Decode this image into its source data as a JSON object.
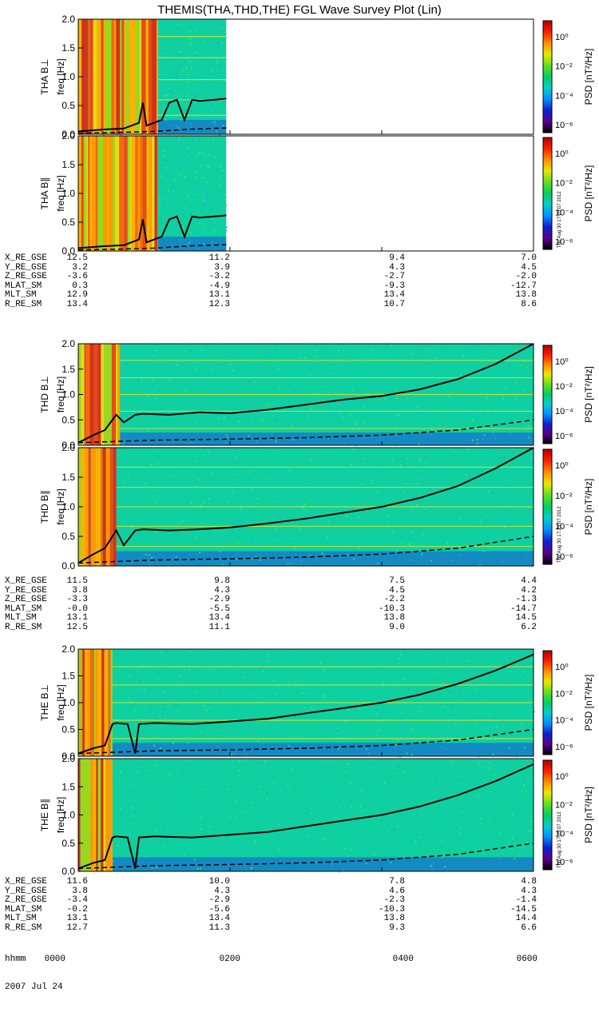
{
  "title": "THEMIS(THA,THD,THE) FGL Wave Survey Plot (Lin)",
  "colors": {
    "low_power_bg": "#0fd0a0",
    "noise_blue": "#1a50e0",
    "high_power": "#e84a18",
    "harmonic_line": "#c8e83a",
    "trace": "#000000"
  },
  "colorbar": {
    "label": "PSD [nT²/Hz]",
    "ticks": [
      "10⁰",
      "10⁻²",
      "10⁻⁴",
      "10⁻⁶"
    ],
    "colors": [
      "#000000",
      "#5a0090",
      "#1020d0",
      "#0090ff",
      "#00d0d0",
      "#00d060",
      "#60e020",
      "#e8e800",
      "#ff9000",
      "#ff2000",
      "#b00000"
    ],
    "stamp": "Thu Aug 30 17:25:07 2012"
  },
  "time_axis": {
    "xlim_hours": [
      0,
      6
    ],
    "ticks_hours": [
      0,
      2,
      4,
      6
    ],
    "hhmm": [
      "0000",
      "0200",
      "0400",
      "0600"
    ],
    "hhmm_label": "hhmm",
    "date": "2007 Jul 24"
  },
  "chart_data": [
    {
      "type": "heatmap",
      "probe": "THA",
      "panel_label": "THA B⊥",
      "ylabel": "freq [Hz]",
      "ylim": [
        0.0,
        2.0
      ],
      "yticks": [
        "0.0",
        "0.5",
        "1.0",
        "1.5",
        "2.0"
      ],
      "data_end_hours": 1.95,
      "high_power_until_hours": 1.05,
      "harmonics_hz": [
        0.33,
        0.6,
        0.95,
        1.33,
        1.7
      ],
      "gyro_curve": {
        "x": [
          0,
          0.3,
          0.6,
          0.8,
          0.85,
          0.9,
          1.0,
          1.1,
          1.2,
          1.3,
          1.4,
          1.5,
          1.6,
          1.8,
          1.95
        ],
        "y": [
          0.05,
          0.08,
          0.1,
          0.2,
          0.55,
          0.15,
          0.2,
          0.25,
          0.55,
          0.6,
          0.25,
          0.6,
          0.58,
          0.6,
          0.62
        ]
      },
      "dashed_curve": {
        "x": [
          0,
          0.5,
          1.0,
          1.5,
          1.95
        ],
        "y": [
          0.02,
          0.03,
          0.05,
          0.09,
          0.11
        ]
      }
    },
    {
      "type": "heatmap",
      "probe": "THA",
      "panel_label": "THA B∥",
      "ylabel": "freq [Hz]",
      "ylim": [
        0.0,
        2.0
      ],
      "yticks": [
        "0.0",
        "0.5",
        "1.0",
        "1.5",
        "2.0"
      ],
      "data_end_hours": 1.95,
      "high_power_until_hours": 1.05,
      "harmonics_hz": [],
      "gyro_curve": {
        "x": [
          0,
          0.3,
          0.6,
          0.8,
          0.85,
          0.9,
          1.0,
          1.1,
          1.2,
          1.3,
          1.4,
          1.5,
          1.6,
          1.8,
          1.95
        ],
        "y": [
          0.05,
          0.08,
          0.1,
          0.2,
          0.55,
          0.15,
          0.2,
          0.25,
          0.55,
          0.6,
          0.25,
          0.6,
          0.58,
          0.6,
          0.62
        ]
      },
      "dashed_curve": {
        "x": [
          0,
          0.5,
          1.0,
          1.5,
          1.95
        ],
        "y": [
          0.02,
          0.03,
          0.05,
          0.09,
          0.11
        ]
      }
    },
    {
      "type": "heatmap",
      "probe": "THD",
      "panel_label": "THD B⊥",
      "ylabel": "freq [Hz]",
      "ylim": [
        0.0,
        2.0
      ],
      "yticks": [
        "0.0",
        "0.5",
        "1.0",
        "1.5",
        "2.0"
      ],
      "data_end_hours": 6.0,
      "high_power_until_hours": 0.55,
      "harmonics_hz": [
        0.33,
        0.67,
        1.0,
        1.33,
        1.67
      ],
      "gyro_curve": {
        "x": [
          0,
          0.2,
          0.35,
          0.5,
          0.6,
          0.75,
          0.85,
          1.2,
          1.6,
          2.0,
          2.5,
          3.0,
          3.5,
          4.0,
          4.5,
          5.0,
          5.5,
          6.0
        ],
        "y": [
          0.05,
          0.2,
          0.3,
          0.6,
          0.45,
          0.6,
          0.62,
          0.6,
          0.65,
          0.63,
          0.7,
          0.8,
          0.9,
          0.97,
          1.1,
          1.3,
          1.6,
          2.0
        ]
      },
      "dashed_curve": {
        "x": [
          0,
          1.0,
          2.0,
          3.0,
          4.0,
          5.0,
          6.0
        ],
        "y": [
          0.05,
          0.1,
          0.12,
          0.15,
          0.2,
          0.3,
          0.5
        ]
      }
    },
    {
      "type": "heatmap",
      "probe": "THD",
      "panel_label": "THD B∥",
      "ylabel": "freq [Hz]",
      "ylim": [
        0.0,
        2.0
      ],
      "yticks": [
        "0.0",
        "0.5",
        "1.0",
        "1.5",
        "2.0"
      ],
      "data_end_hours": 6.0,
      "high_power_until_hours": 0.5,
      "harmonics_hz": [
        0.33,
        0.67,
        1.0,
        1.33,
        1.67
      ],
      "gyro_curve": {
        "x": [
          0,
          0.2,
          0.35,
          0.5,
          0.6,
          0.75,
          0.85,
          1.2,
          1.6,
          2.0,
          2.5,
          3.0,
          3.5,
          4.0,
          4.5,
          5.0,
          5.5,
          6.0
        ],
        "y": [
          0.05,
          0.2,
          0.3,
          0.6,
          0.35,
          0.6,
          0.62,
          0.6,
          0.62,
          0.65,
          0.72,
          0.8,
          0.9,
          1.0,
          1.15,
          1.35,
          1.65,
          2.0
        ]
      },
      "dashed_curve": {
        "x": [
          0,
          1.0,
          2.0,
          3.0,
          4.0,
          5.0,
          6.0
        ],
        "y": [
          0.05,
          0.1,
          0.12,
          0.15,
          0.2,
          0.3,
          0.5
        ]
      }
    },
    {
      "type": "heatmap",
      "probe": "THE",
      "panel_label": "THE B⊥",
      "ylabel": "freq [Hz]",
      "ylim": [
        0.0,
        2.0
      ],
      "yticks": [
        "0.0",
        "0.5",
        "1.0",
        "1.5",
        "2.0"
      ],
      "data_end_hours": 6.0,
      "high_power_until_hours": 0.45,
      "harmonics_hz": [
        0.33,
        0.67,
        1.0,
        1.33,
        1.67
      ],
      "gyro_curve": {
        "x": [
          0,
          0.2,
          0.35,
          0.45,
          0.5,
          0.65,
          0.75,
          0.8,
          1.0,
          1.5,
          2.0,
          2.5,
          3.0,
          3.5,
          4.0,
          4.5,
          5.0,
          5.5,
          6.0
        ],
        "y": [
          0.05,
          0.15,
          0.2,
          0.6,
          0.62,
          0.6,
          0.05,
          0.6,
          0.62,
          0.6,
          0.65,
          0.7,
          0.8,
          0.9,
          1.0,
          1.15,
          1.35,
          1.6,
          1.9
        ]
      },
      "dashed_curve": {
        "x": [
          0,
          1.0,
          2.0,
          3.0,
          4.0,
          5.0,
          6.0
        ],
        "y": [
          0.05,
          0.1,
          0.12,
          0.15,
          0.2,
          0.3,
          0.5
        ]
      }
    },
    {
      "type": "heatmap",
      "probe": "THE",
      "panel_label": "THE B∥",
      "ylabel": "freq [Hz]",
      "ylim": [
        0.0,
        2.0
      ],
      "yticks": [
        "0.0",
        "0.5",
        "1.0",
        "1.5",
        "2.0"
      ],
      "data_end_hours": 6.0,
      "high_power_until_hours": 0.45,
      "harmonics_hz": [],
      "gyro_curve": {
        "x": [
          0,
          0.2,
          0.35,
          0.45,
          0.5,
          0.65,
          0.75,
          0.8,
          1.0,
          1.5,
          2.0,
          2.5,
          3.0,
          3.5,
          4.0,
          4.5,
          5.0,
          5.5,
          6.0
        ],
        "y": [
          0.05,
          0.15,
          0.2,
          0.6,
          0.62,
          0.6,
          0.05,
          0.6,
          0.62,
          0.6,
          0.65,
          0.7,
          0.8,
          0.9,
          1.0,
          1.15,
          1.35,
          1.6,
          1.9
        ]
      },
      "dashed_curve": {
        "x": [
          0,
          1.0,
          2.0,
          3.0,
          4.0,
          5.0,
          6.0
        ],
        "y": [
          0.05,
          0.1,
          0.12,
          0.15,
          0.2,
          0.3,
          0.5
        ]
      }
    }
  ],
  "orbit_tables": [
    {
      "probe": "THA",
      "rows": [
        {
          "label": "X_RE_GSE",
          "values": [
            "12.5",
            "11.2",
            "9.4",
            "7.0"
          ]
        },
        {
          "label": "Y_RE_GSE",
          "values": [
            "3.2",
            "3.9",
            "4.3",
            "4.5"
          ]
        },
        {
          "label": "Z_RE_GSE",
          "values": [
            "-3.6",
            "-3.2",
            "-2.7",
            "-2.0"
          ]
        },
        {
          "label": "MLAT_SM",
          "values": [
            "0.3",
            "-4.9",
            "-9.3",
            "-12.7"
          ]
        },
        {
          "label": "MLT_SM",
          "values": [
            "12.9",
            "13.1",
            "13.4",
            "13.8"
          ]
        },
        {
          "label": "R_RE_SM",
          "values": [
            "13.4",
            "12.3",
            "10.7",
            "8.6"
          ]
        }
      ]
    },
    {
      "probe": "THD",
      "rows": [
        {
          "label": "X_RE_GSE",
          "values": [
            "11.5",
            "9.8",
            "7.5",
            "4.4"
          ]
        },
        {
          "label": "Y_RE_GSE",
          "values": [
            "3.8",
            "4.3",
            "4.5",
            "4.2"
          ]
        },
        {
          "label": "Z_RE_GSE",
          "values": [
            "-3.3",
            "-2.9",
            "-2.2",
            "-1.3"
          ]
        },
        {
          "label": "MLAT_SM",
          "values": [
            "-0.0",
            "-5.5",
            "-10.3",
            "-14.7"
          ]
        },
        {
          "label": "MLT_SM",
          "values": [
            "13.1",
            "13.4",
            "13.8",
            "14.5"
          ]
        },
        {
          "label": "R_RE_SM",
          "values": [
            "12.5",
            "11.1",
            "9.0",
            "6.2"
          ]
        }
      ]
    },
    {
      "probe": "THE",
      "rows": [
        {
          "label": "X_RE_GSE",
          "values": [
            "11.6",
            "10.0",
            "7.8",
            "4.8"
          ]
        },
        {
          "label": "Y_RE_GSE",
          "values": [
            "3.8",
            "4.3",
            "4.6",
            "4.3"
          ]
        },
        {
          "label": "Z_RE_GSE",
          "values": [
            "-3.4",
            "-2.9",
            "-2.3",
            "-1.4"
          ]
        },
        {
          "label": "MLAT_SM",
          "values": [
            "-0.2",
            "-5.6",
            "-10.3",
            "-14.5"
          ]
        },
        {
          "label": "MLT_SM",
          "values": [
            "13.1",
            "13.4",
            "13.8",
            "14.4"
          ]
        },
        {
          "label": "R_RE_SM",
          "values": [
            "12.7",
            "11.3",
            "9.3",
            "6.6"
          ]
        }
      ]
    }
  ]
}
